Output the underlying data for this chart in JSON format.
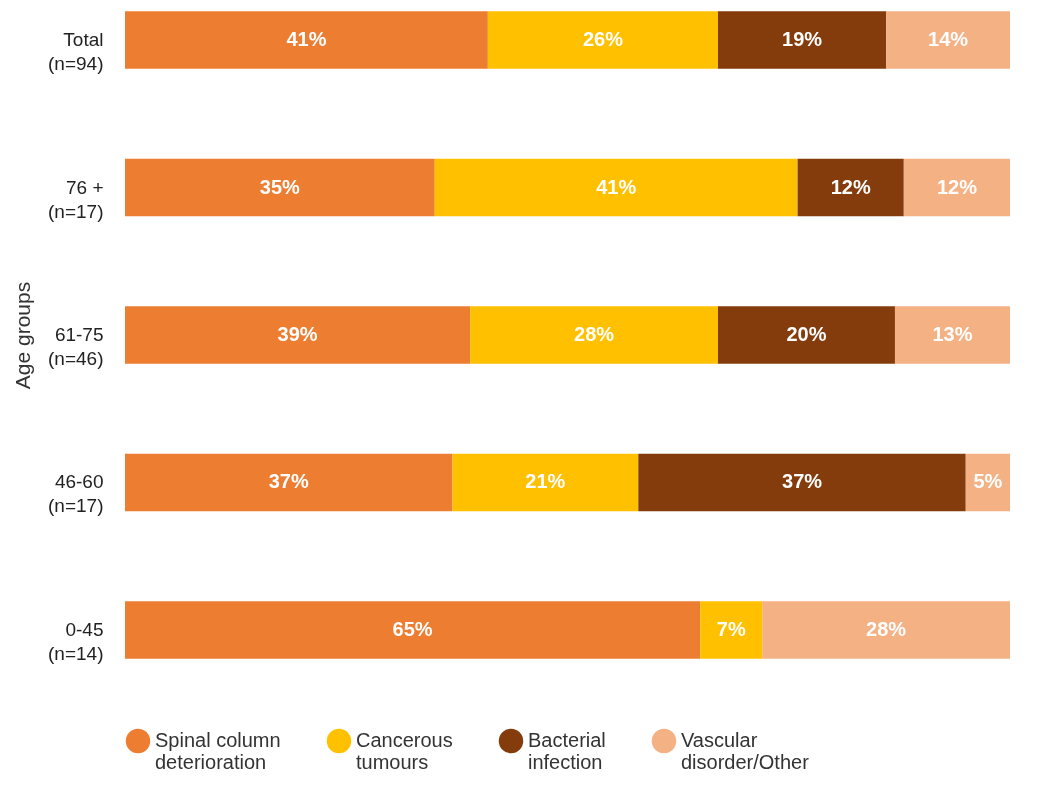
{
  "chart_data": {
    "type": "bar",
    "orientation": "horizontal",
    "stacked": true,
    "ylabel": "Age groups",
    "categories": [
      "Total (n=94)",
      "76 + (n=17)",
      "61-75 (n=46)",
      "46-60 (n=17)",
      "0-45 (n=14)"
    ],
    "series": [
      {
        "name": "Spinal column deterioration",
        "color": "#ed7d31",
        "values": [
          41,
          35,
          39,
          37,
          65
        ],
        "value_labels": [
          "41%",
          "35%",
          "39%",
          "37%",
          "65%"
        ]
      },
      {
        "name": "Cancerous tumours",
        "color": "#ffc000",
        "values": [
          26,
          41,
          28,
          21,
          7
        ],
        "value_labels": [
          "26%",
          "41%",
          "28%",
          "21%",
          "7%"
        ]
      },
      {
        "name": "Bacterial infection",
        "color": "#843c0c",
        "values": [
          19,
          12,
          20,
          37,
          null
        ],
        "value_labels": [
          "19%",
          "12%",
          "20%",
          "37%",
          null
        ]
      },
      {
        "name": "Vascular disorder/Other",
        "color": "#f4b183",
        "values": [
          14,
          12,
          13,
          5,
          28
        ],
        "value_labels": [
          "14%",
          "12%",
          "13%",
          "5%",
          "28%"
        ]
      }
    ],
    "tick_labels": "y",
    "legend": "bottom"
  }
}
